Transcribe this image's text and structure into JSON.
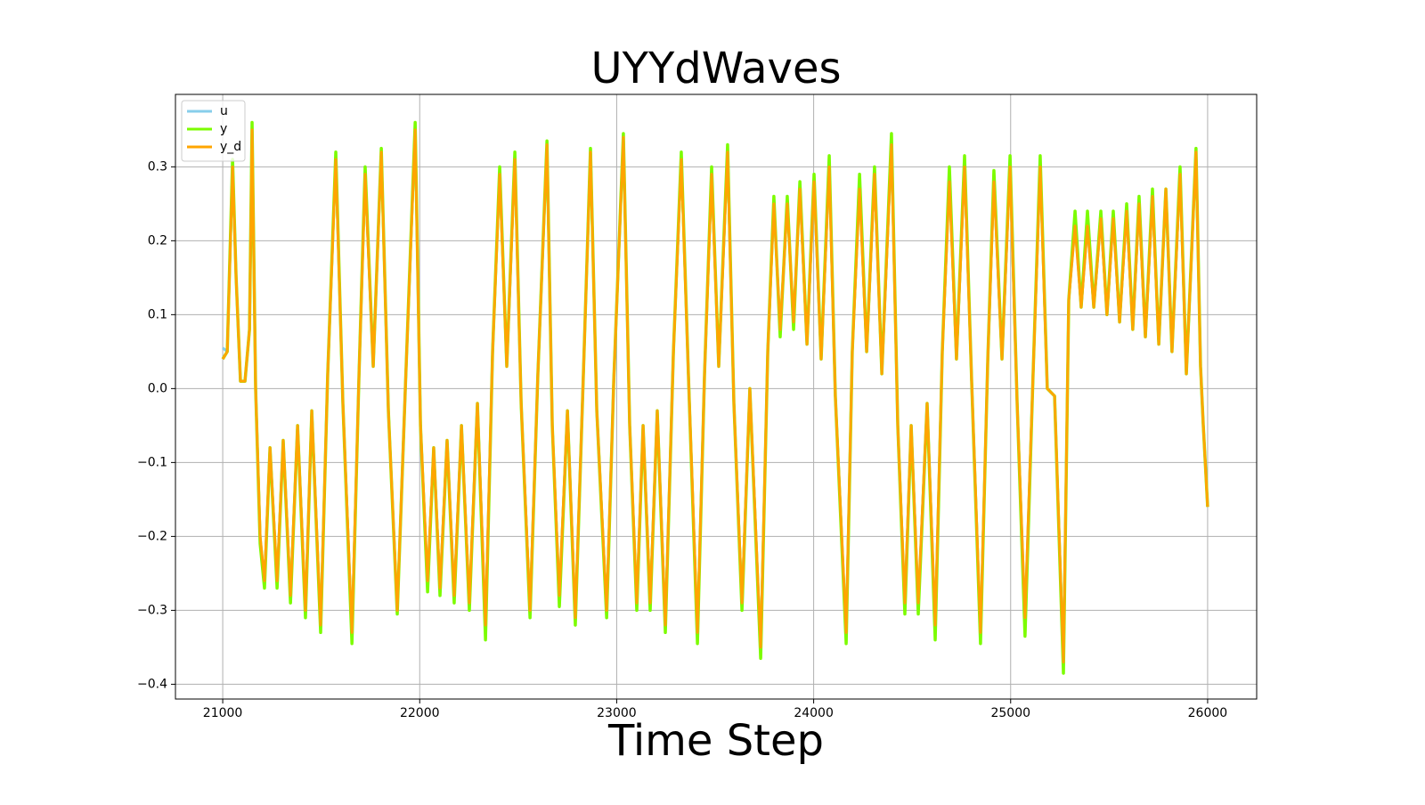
{
  "chart_data": {
    "type": "line",
    "title": "UYYdWaves",
    "x_label": "Time Step",
    "x": [
      21000,
      21023,
      21050,
      21068,
      21090,
      21113,
      21136,
      21149,
      21167,
      21190,
      21212,
      21240,
      21276,
      21307,
      21344,
      21380,
      21420,
      21452,
      21497,
      21533,
      21574,
      21610,
      21656,
      21692,
      21723,
      21764,
      21805,
      21841,
      21886,
      21927,
      21977,
      22004,
      22040,
      22071,
      22103,
      22139,
      22175,
      22212,
      22252,
      22293,
      22334,
      22370,
      22406,
      22442,
      22483,
      22515,
      22560,
      22600,
      22646,
      22673,
      22709,
      22750,
      22790,
      22831,
      22867,
      22899,
      22949,
      22985,
      23034,
      23066,
      23102,
      23134,
      23170,
      23206,
      23247,
      23288,
      23328,
      23364,
      23410,
      23446,
      23482,
      23518,
      23563,
      23595,
      23636,
      23676,
      23731,
      23767,
      23798,
      23830,
      23866,
      23898,
      23930,
      23966,
      24002,
      24038,
      24079,
      24110,
      24165,
      24196,
      24233,
      24269,
      24309,
      24346,
      24395,
      24427,
      24463,
      24495,
      24531,
      24576,
      24617,
      24653,
      24689,
      24725,
      24766,
      24802,
      24847,
      24884,
      24915,
      24956,
      24997,
      25033,
      25073,
      25114,
      25150,
      25186,
      25223,
      25268,
      25295,
      25327,
      25358,
      25390,
      25422,
      25458,
      25489,
      25521,
      25553,
      25589,
      25620,
      25652,
      25684,
      25720,
      25752,
      25788,
      25819,
      25860,
      25892,
      25941,
      25964,
      25978,
      26000
    ],
    "series": [
      {
        "name": "u",
        "color": "#87ceeb",
        "values": [
          0.055,
          0.05,
          0.3,
          0.15,
          0.01,
          0.01,
          0.08,
          0.35,
          0.0,
          -0.2,
          -0.26,
          -0.08,
          -0.26,
          -0.07,
          -0.28,
          -0.05,
          -0.3,
          -0.03,
          -0.32,
          0.02,
          0.31,
          -0.02,
          -0.33,
          0.02,
          0.29,
          0.03,
          0.32,
          -0.03,
          -0.3,
          0.0,
          0.35,
          -0.05,
          -0.26,
          -0.08,
          -0.27,
          -0.07,
          -0.28,
          -0.05,
          -0.29,
          -0.02,
          -0.32,
          0.05,
          0.29,
          0.03,
          0.31,
          -0.02,
          -0.3,
          0.02,
          0.33,
          -0.05,
          -0.28,
          -0.03,
          -0.31,
          0.02,
          0.32,
          -0.03,
          -0.3,
          0.01,
          0.34,
          -0.05,
          -0.29,
          -0.05,
          -0.29,
          -0.03,
          -0.32,
          0.05,
          0.31,
          0.02,
          -0.33,
          0.02,
          0.29,
          0.03,
          0.32,
          -0.02,
          -0.29,
          0.0,
          -0.35,
          0.05,
          0.25,
          0.08,
          0.25,
          0.09,
          0.27,
          0.06,
          0.28,
          0.04,
          0.3,
          -0.01,
          -0.33,
          0.05,
          0.27,
          0.05,
          0.29,
          0.02,
          0.33,
          -0.05,
          -0.29,
          -0.05,
          -0.29,
          -0.02,
          -0.32,
          0.05,
          0.28,
          0.04,
          0.3,
          0.01,
          -0.33,
          0.04,
          0.28,
          0.04,
          0.3,
          -0.02,
          -0.31,
          0.02,
          0.3,
          0.0,
          -0.01,
          -0.37,
          0.12,
          0.22,
          0.11,
          0.22,
          0.11,
          0.23,
          0.1,
          0.23,
          0.09,
          0.24,
          0.08,
          0.25,
          0.07,
          0.26,
          0.06,
          0.27,
          0.05,
          0.29,
          0.02,
          0.32,
          0.03,
          -0.05,
          -0.16
        ]
      },
      {
        "name": "y",
        "color": "#7cfc00",
        "values": [
          0.04,
          0.05,
          0.31,
          0.15,
          0.01,
          0.01,
          0.08,
          0.36,
          0.0,
          -0.21,
          -0.27,
          -0.08,
          -0.27,
          -0.07,
          -0.29,
          -0.05,
          -0.31,
          -0.03,
          -0.33,
          0.02,
          0.32,
          -0.02,
          -0.345,
          0.02,
          0.3,
          0.03,
          0.325,
          -0.03,
          -0.305,
          0.0,
          0.36,
          -0.05,
          -0.275,
          -0.08,
          -0.28,
          -0.07,
          -0.29,
          -0.05,
          -0.3,
          -0.02,
          -0.34,
          0.05,
          0.3,
          0.03,
          0.32,
          -0.02,
          -0.31,
          0.02,
          0.335,
          -0.05,
          -0.295,
          -0.03,
          -0.32,
          0.02,
          0.325,
          -0.03,
          -0.31,
          0.01,
          0.345,
          -0.05,
          -0.3,
          -0.05,
          -0.3,
          -0.03,
          -0.33,
          0.05,
          0.32,
          0.02,
          -0.345,
          0.02,
          0.3,
          0.03,
          0.33,
          -0.02,
          -0.3,
          0.0,
          -0.365,
          0.05,
          0.26,
          0.07,
          0.26,
          0.08,
          0.28,
          0.06,
          0.29,
          0.04,
          0.315,
          -0.01,
          -0.345,
          0.05,
          0.29,
          0.05,
          0.3,
          0.02,
          0.345,
          -0.05,
          -0.305,
          -0.05,
          -0.305,
          -0.02,
          -0.34,
          0.05,
          0.3,
          0.04,
          0.315,
          0.01,
          -0.345,
          0.04,
          0.295,
          0.04,
          0.315,
          -0.02,
          -0.335,
          0.02,
          0.315,
          0.0,
          -0.01,
          -0.385,
          0.12,
          0.24,
          0.11,
          0.24,
          0.11,
          0.24,
          0.1,
          0.24,
          0.09,
          0.25,
          0.08,
          0.26,
          0.07,
          0.27,
          0.06,
          0.27,
          0.05,
          0.3,
          0.02,
          0.325,
          0.03,
          -0.05,
          -0.16
        ]
      },
      {
        "name": "y_d",
        "color": "#ffa500",
        "values": [
          0.04,
          0.05,
          0.3,
          0.15,
          0.01,
          0.01,
          0.08,
          0.35,
          0.0,
          -0.2,
          -0.26,
          -0.08,
          -0.26,
          -0.07,
          -0.28,
          -0.05,
          -0.3,
          -0.03,
          -0.32,
          0.02,
          0.31,
          -0.02,
          -0.33,
          0.02,
          0.29,
          0.03,
          0.32,
          -0.03,
          -0.3,
          0.0,
          0.35,
          -0.05,
          -0.26,
          -0.08,
          -0.27,
          -0.07,
          -0.28,
          -0.05,
          -0.29,
          -0.02,
          -0.32,
          0.05,
          0.29,
          0.03,
          0.31,
          -0.02,
          -0.3,
          0.02,
          0.33,
          -0.05,
          -0.28,
          -0.03,
          -0.31,
          0.02,
          0.32,
          -0.03,
          -0.3,
          0.01,
          0.34,
          -0.05,
          -0.29,
          -0.05,
          -0.29,
          -0.03,
          -0.32,
          0.05,
          0.31,
          0.02,
          -0.33,
          0.02,
          0.29,
          0.03,
          0.32,
          -0.02,
          -0.29,
          0.0,
          -0.35,
          0.05,
          0.25,
          0.08,
          0.25,
          0.09,
          0.27,
          0.06,
          0.28,
          0.04,
          0.3,
          -0.01,
          -0.33,
          0.05,
          0.27,
          0.05,
          0.29,
          0.02,
          0.33,
          -0.05,
          -0.29,
          -0.05,
          -0.29,
          -0.02,
          -0.32,
          0.05,
          0.28,
          0.04,
          0.3,
          0.01,
          -0.33,
          0.04,
          0.28,
          0.04,
          0.3,
          -0.02,
          -0.31,
          0.02,
          0.3,
          0.0,
          -0.01,
          -0.37,
          0.12,
          0.22,
          0.11,
          0.22,
          0.11,
          0.23,
          0.1,
          0.23,
          0.09,
          0.24,
          0.08,
          0.25,
          0.07,
          0.26,
          0.06,
          0.27,
          0.05,
          0.29,
          0.02,
          0.32,
          0.03,
          -0.05,
          -0.16
        ]
      }
    ],
    "xlim": [
      20760,
      26249
    ],
    "ylim": [
      -0.42,
      0.398
    ],
    "xticks": [
      21000,
      22000,
      23000,
      24000,
      25000,
      26000
    ],
    "yticks": [
      {
        "value": -0.4,
        "label": "−0.4"
      },
      {
        "value": -0.3,
        "label": "−0.3"
      },
      {
        "value": -0.2,
        "label": "−0.2"
      },
      {
        "value": -0.1,
        "label": "−0.1"
      },
      {
        "value": 0,
        "label": "0.0"
      },
      0.1,
      0.2,
      0.3
    ],
    "grid": true,
    "legend": "upper-left"
  }
}
